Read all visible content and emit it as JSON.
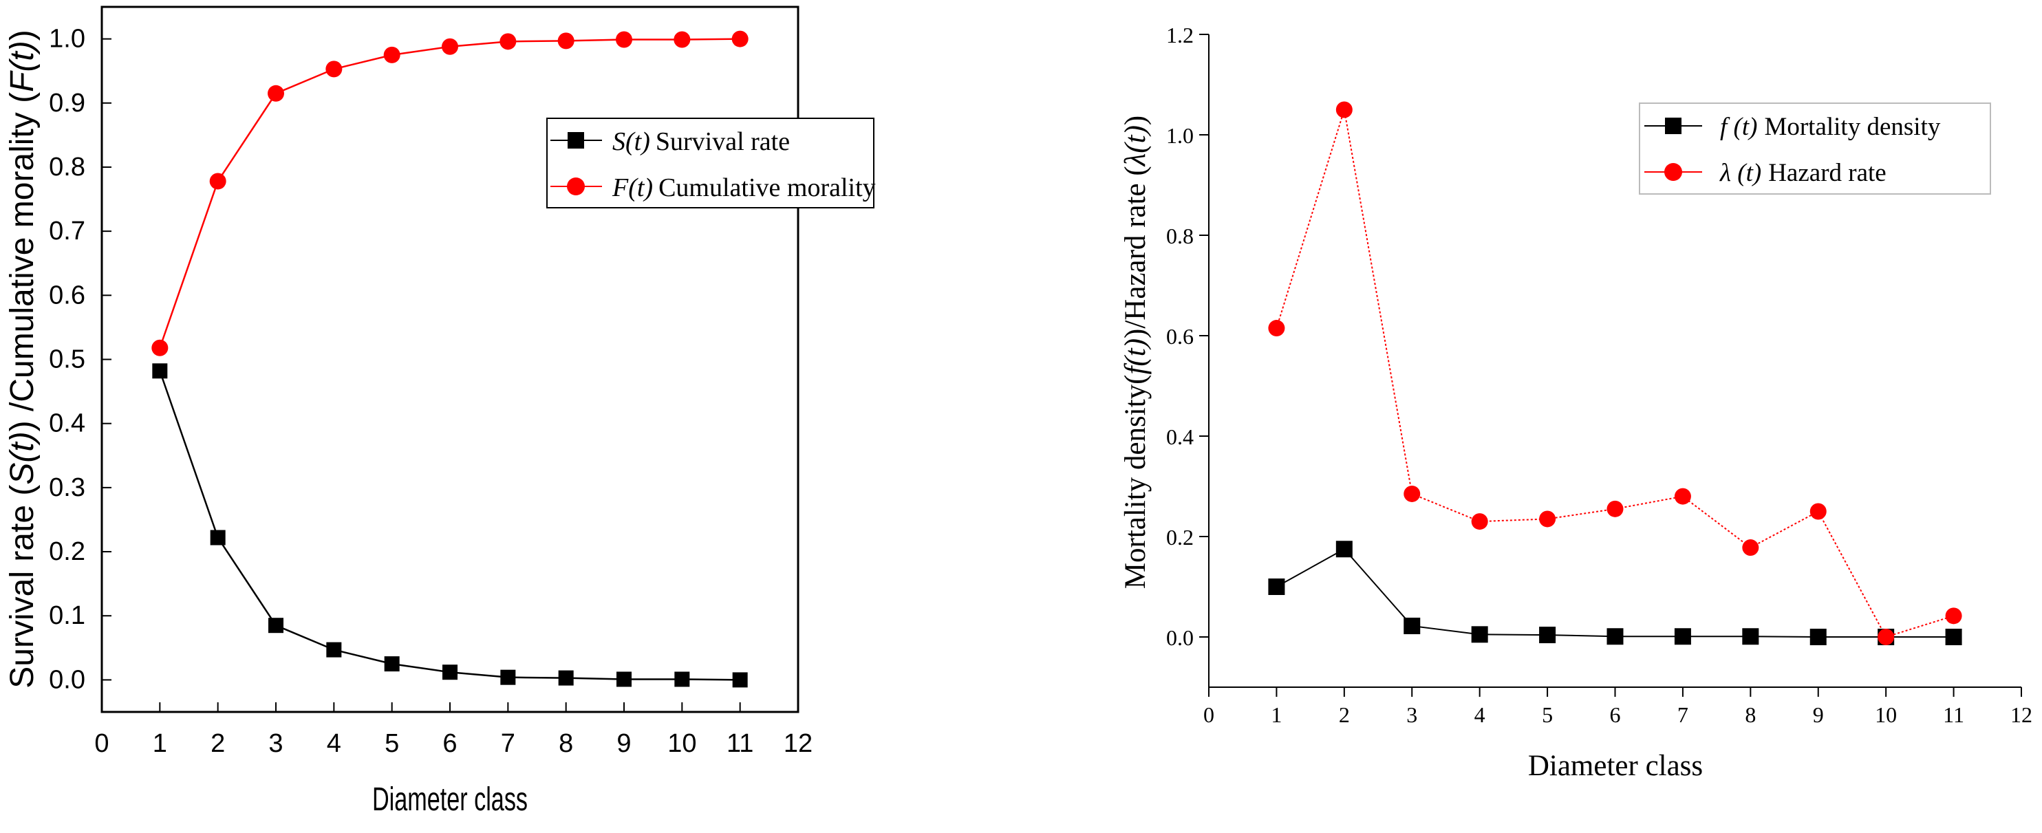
{
  "chart_data": [
    {
      "type": "line",
      "title": "",
      "xlabel": "Diameter class",
      "ylabel": "Survival rate (S(t)) /Cumulative morality (F(t))",
      "ylabel_parts": [
        "Survival rate (",
        "S(t)",
        ") /Cumulative morality (",
        "F(t)",
        ")"
      ],
      "xlim": [
        0,
        12
      ],
      "ylim": [
        -0.05,
        1.05
      ],
      "x_ticks": [
        "0",
        "1",
        "2",
        "3",
        "4",
        "5",
        "6",
        "7",
        "8",
        "9",
        "10",
        "11",
        "12"
      ],
      "y_ticks": [
        "0.0",
        "0.1",
        "0.2",
        "0.3",
        "0.4",
        "0.5",
        "0.6",
        "0.7",
        "0.8",
        "0.9",
        "1.0"
      ],
      "grid": false,
      "legend": "top-right",
      "x": [
        1,
        2,
        3,
        4,
        5,
        6,
        7,
        8,
        9,
        10,
        11
      ],
      "series": [
        {
          "name": "S(t) Survival rate",
          "symbol": "S(t)",
          "label": "Survival rate",
          "color": "#000000",
          "marker": "square",
          "values": [
            0.482,
            0.222,
            0.085,
            0.047,
            0.025,
            0.012,
            0.004,
            0.003,
            0.001,
            0.001,
            0.0
          ]
        },
        {
          "name": "F(t) Cumulative morality",
          "symbol": "F(t)",
          "label": "Cumulative morality",
          "color": "#ff0000",
          "marker": "circle",
          "values": [
            0.518,
            0.778,
            0.915,
            0.953,
            0.975,
            0.988,
            0.996,
            0.997,
            0.999,
            0.999,
            1.0
          ]
        }
      ]
    },
    {
      "type": "line",
      "title": "",
      "xlabel": "Diameter class",
      "ylabel": "Mortality density(f(t))/Hazard rate (λ(t))",
      "ylabel_parts": [
        "Mortality density(",
        "f(t)",
        ")/Hazard rate (",
        "λ(t)",
        ")"
      ],
      "xlim": [
        0,
        12
      ],
      "ylim": [
        -0.1,
        1.2
      ],
      "x_ticks": [
        "0",
        "1",
        "2",
        "3",
        "4",
        "5",
        "6",
        "7",
        "8",
        "9",
        "10",
        "11",
        "12"
      ],
      "y_ticks": [
        "0.0",
        "0.2",
        "0.4",
        "0.6",
        "0.8",
        "1.0",
        "1.2"
      ],
      "grid": false,
      "legend": "top-right",
      "x": [
        1,
        2,
        3,
        4,
        5,
        6,
        7,
        8,
        9,
        10,
        11
      ],
      "series": [
        {
          "name": "f (t) Mortality density",
          "symbol": "f (t)",
          "label": "Mortality density",
          "color": "#000000",
          "marker": "square",
          "values": [
            0.1,
            0.175,
            0.022,
            0.005,
            0.004,
            0.001,
            0.001,
            0.001,
            0.0,
            0.0,
            0.0
          ]
        },
        {
          "name": "λ (t) Hazard rate",
          "symbol": "λ (t)",
          "label": "Hazard rate",
          "color": "#ff0000",
          "marker": "circle",
          "values": [
            0.615,
            1.05,
            0.285,
            0.23,
            0.235,
            0.255,
            0.28,
            0.178,
            0.25,
            0.0,
            0.042
          ]
        }
      ]
    }
  ]
}
